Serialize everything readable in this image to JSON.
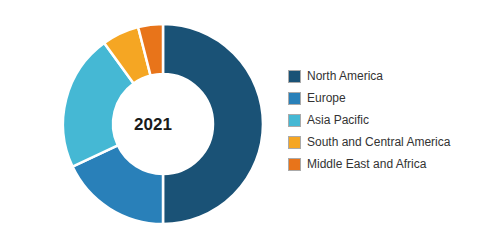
{
  "chart_data": {
    "type": "donut",
    "categories": [
      "North America",
      "Europe",
      "Asia Pacific",
      "South and Central America",
      "Middle East and Africa"
    ],
    "values": [
      50,
      18,
      22,
      6,
      4
    ],
    "colors": [
      "#1a5276",
      "#2980b9",
      "#45b8d4",
      "#f5a623",
      "#e8741a"
    ],
    "annotations": [
      "2021"
    ],
    "legend": "right"
  }
}
